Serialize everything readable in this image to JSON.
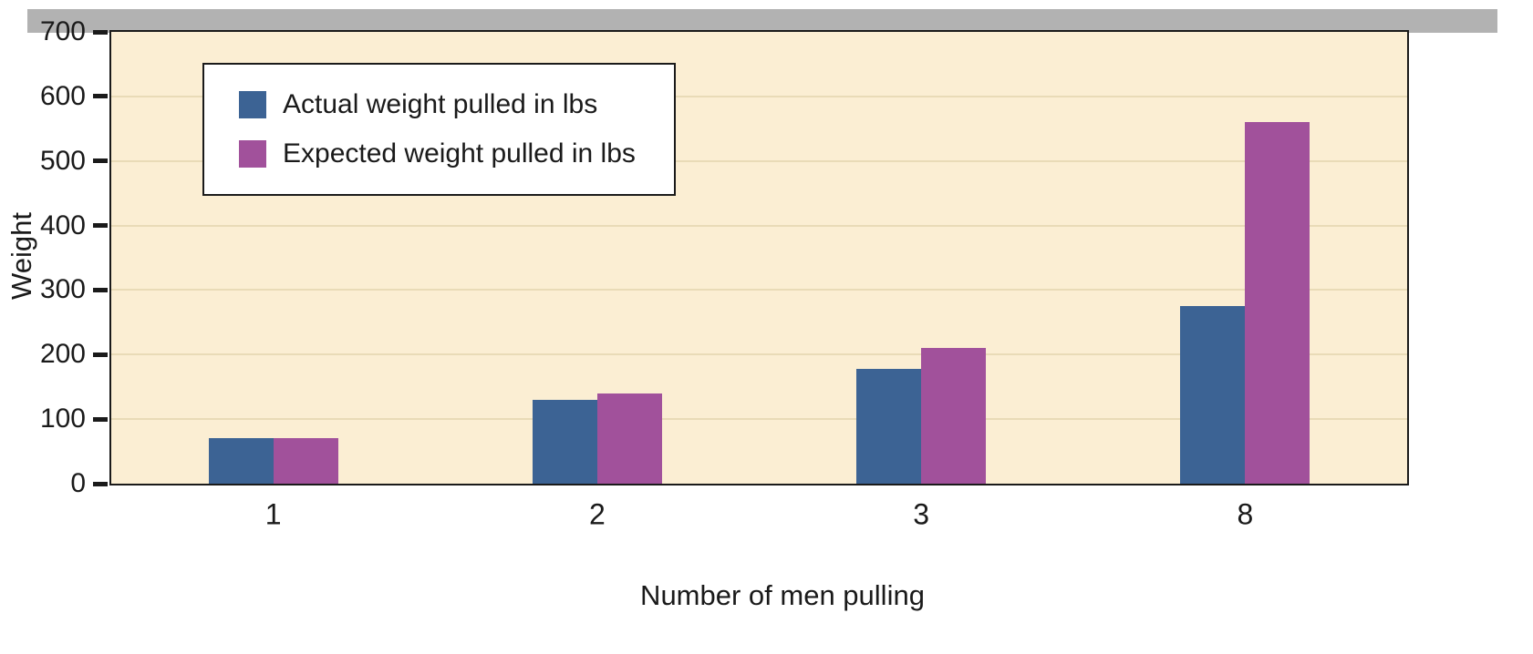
{
  "chart_data": {
    "type": "bar",
    "title": "",
    "xlabel": "Number of men pulling",
    "ylabel": "Weight",
    "categories": [
      "1",
      "2",
      "3",
      "8"
    ],
    "series": [
      {
        "name": "Actual weight pulled in lbs",
        "color": "#3c6394",
        "values": [
          70,
          130,
          178,
          275
        ]
      },
      {
        "name": "Expected weight pulled in lbs",
        "color": "#a1519b",
        "values": [
          70,
          140,
          210,
          560
        ]
      }
    ],
    "ylim": [
      0,
      700
    ],
    "yticks": [
      0,
      100,
      200,
      300,
      400,
      500,
      600,
      700
    ],
    "grid": "horizontal",
    "legend_position": "top-left",
    "colors": {
      "plot_background": "#fbeed3",
      "gridline": "#e9dbb7",
      "shadow": "#b2b2b2",
      "axis": "#1a1a1a",
      "text": "#1a1a1a"
    }
  }
}
